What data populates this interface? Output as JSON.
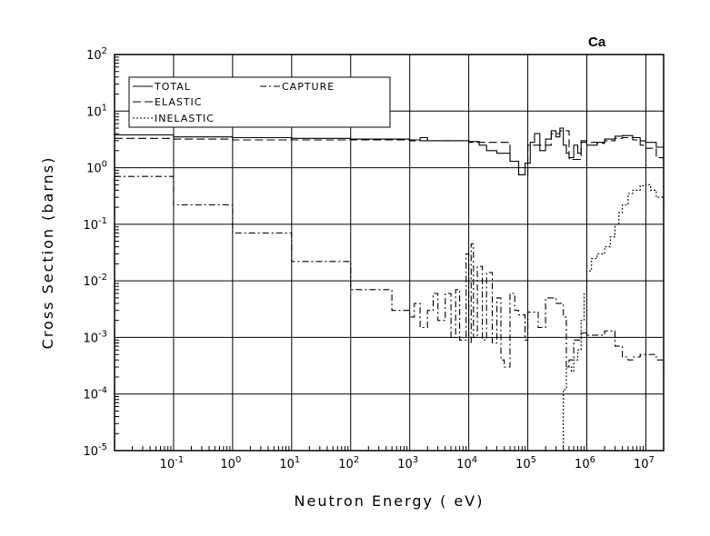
{
  "chart_data": {
    "type": "line",
    "title": "Ca",
    "xlabel": "Neutron Energy ( eV)",
    "ylabel": "Cross Section (barns)",
    "x_scale": "log",
    "y_scale": "log",
    "xlim": [
      0.01,
      20000000
    ],
    "ylim": [
      1e-05,
      100
    ],
    "grid": true,
    "legend_position": "top-left",
    "x_ticks": [
      {
        "base": "10",
        "exp": "-1",
        "value": 0.1
      },
      {
        "base": "10",
        "exp": "0",
        "value": 1
      },
      {
        "base": "10",
        "exp": "1",
        "value": 10
      },
      {
        "base": "10",
        "exp": "2",
        "value": 100
      },
      {
        "base": "10",
        "exp": "3",
        "value": 1000
      },
      {
        "base": "10",
        "exp": "4",
        "value": 10000
      },
      {
        "base": "10",
        "exp": "5",
        "value": 100000
      },
      {
        "base": "10",
        "exp": "6",
        "value": 1000000
      },
      {
        "base": "10",
        "exp": "7",
        "value": 10000000
      }
    ],
    "y_ticks": [
      {
        "base": "10",
        "exp": "2",
        "value": 100
      },
      {
        "base": "10",
        "exp": "1",
        "value": 10
      },
      {
        "base": "10",
        "exp": "0",
        "value": 1
      },
      {
        "base": "10",
        "exp": "-1",
        "value": 0.1
      },
      {
        "base": "10",
        "exp": "-2",
        "value": 0.01
      },
      {
        "base": "10",
        "exp": "-3",
        "value": 0.001
      },
      {
        "base": "10",
        "exp": "-4",
        "value": 0.0001
      },
      {
        "base": "10",
        "exp": "-5",
        "value": 1e-05
      }
    ],
    "series": [
      {
        "name": "TOTAL",
        "dash": "solid",
        "color": "#000000",
        "points": [
          [
            0.01,
            3.8
          ],
          [
            0.1,
            3.5
          ],
          [
            1,
            3.4
          ],
          [
            10,
            3.3
          ],
          [
            100,
            3.2
          ],
          [
            1000,
            3.1
          ],
          [
            1500,
            3.4
          ],
          [
            2000,
            3.0
          ],
          [
            5000,
            3.0
          ],
          [
            10000,
            2.9
          ],
          [
            15000,
            2.5
          ],
          [
            20000,
            2.0
          ],
          [
            30000,
            1.8
          ],
          [
            50000,
            1.3
          ],
          [
            70000,
            0.75
          ],
          [
            90000,
            1.2
          ],
          [
            110000,
            2.8
          ],
          [
            130000,
            4.0
          ],
          [
            160000,
            2.0
          ],
          [
            200000,
            3.2
          ],
          [
            250000,
            4.5
          ],
          [
            300000,
            3.5
          ],
          [
            350000,
            5.0
          ],
          [
            400000,
            2.5
          ],
          [
            450000,
            1.8
          ],
          [
            500000,
            1.5
          ],
          [
            600000,
            2.5
          ],
          [
            700000,
            1.8
          ],
          [
            800000,
            3.0
          ],
          [
            1000000,
            2.5
          ],
          [
            1500000,
            2.8
          ],
          [
            2000000,
            3.2
          ],
          [
            3000000,
            3.6
          ],
          [
            4000000,
            3.7
          ],
          [
            6000000,
            3.4
          ],
          [
            8000000,
            3.0
          ],
          [
            10000000,
            2.8
          ],
          [
            15000000,
            2.3
          ],
          [
            20000000,
            2.2
          ]
        ]
      },
      {
        "name": "ELASTIC",
        "dash": "long-dash",
        "color": "#000000",
        "points": [
          [
            0.01,
            3.3
          ],
          [
            0.1,
            3.2
          ],
          [
            1,
            3.1
          ],
          [
            5,
            3.1
          ],
          [
            100,
            3.1
          ],
          [
            1000,
            3.0
          ],
          [
            10000,
            2.8
          ],
          [
            50000,
            1.3
          ],
          [
            70000,
            0.75
          ],
          [
            100000,
            2.5
          ],
          [
            250000,
            4.0
          ],
          [
            350000,
            4.5
          ],
          [
            500000,
            1.4
          ],
          [
            800000,
            2.8
          ],
          [
            1500000,
            2.7
          ],
          [
            2000000,
            3.0
          ],
          [
            3000000,
            3.3
          ],
          [
            4000000,
            3.4
          ],
          [
            6000000,
            3.1
          ],
          [
            8000000,
            2.5
          ],
          [
            10000000,
            2.2
          ],
          [
            15000000,
            1.5
          ],
          [
            20000000,
            1.3
          ]
        ]
      },
      {
        "name": "CAPTURE",
        "dash": "dash-dot",
        "color": "#000000",
        "points": [
          [
            0.01,
            0.7
          ],
          [
            0.1,
            0.22
          ],
          [
            1,
            0.07
          ],
          [
            10,
            0.022
          ],
          [
            100,
            0.007
          ],
          [
            500,
            0.003
          ],
          [
            1000,
            0.0023
          ],
          [
            1200,
            0.004
          ],
          [
            1500,
            0.0015
          ],
          [
            2000,
            0.003
          ],
          [
            2500,
            0.006
          ],
          [
            3000,
            0.002
          ],
          [
            4000,
            0.006
          ],
          [
            5000,
            0.001
          ],
          [
            6000,
            0.007
          ],
          [
            7000,
            0.0009
          ],
          [
            9000,
            0.03
          ],
          [
            10000,
            0.0008
          ],
          [
            11000,
            0.045
          ],
          [
            12000,
            0.001
          ],
          [
            14000,
            0.018
          ],
          [
            17000,
            0.0009
          ],
          [
            20000,
            0.014
          ],
          [
            25000,
            0.0008
          ],
          [
            30000,
            0.005
          ],
          [
            35000,
            0.0004
          ],
          [
            40000,
            0.0003
          ],
          [
            50000,
            0.006
          ],
          [
            60000,
            0.003
          ],
          [
            70000,
            0.0025
          ],
          [
            90000,
            0.0009
          ],
          [
            100000,
            0.0028
          ],
          [
            150000,
            0.0015
          ],
          [
            200000,
            0.005
          ],
          [
            300000,
            0.004
          ],
          [
            400000,
            0.0023
          ],
          [
            450000,
            0.0003
          ],
          [
            500000,
            0.0004
          ],
          [
            600000,
            0.0009
          ],
          [
            800000,
            0.0012
          ],
          [
            1000000,
            0.0011
          ],
          [
            2000000,
            0.0013
          ],
          [
            3000000,
            0.0007
          ],
          [
            4000000,
            0.00045
          ],
          [
            5000000,
            0.0004
          ],
          [
            6000000,
            0.00045
          ],
          [
            8000000,
            0.0005
          ],
          [
            10000000,
            0.0005
          ],
          [
            15000000,
            0.0004
          ],
          [
            20000000,
            0.00022
          ]
        ]
      },
      {
        "name": "INELASTIC",
        "dash": "dotted",
        "color": "#000000",
        "points": [
          [
            400000,
            1e-05
          ],
          [
            400000,
            0.00012
          ],
          [
            450000,
            0.0003
          ],
          [
            550000,
            0.00025
          ],
          [
            600000,
            0.0004
          ],
          [
            700000,
            0.0006
          ],
          [
            800000,
            0.002
          ],
          [
            900000,
            0.006
          ],
          [
            1000000,
            0.015
          ],
          [
            1200000,
            0.025
          ],
          [
            1500000,
            0.03
          ],
          [
            2000000,
            0.04
          ],
          [
            2500000,
            0.06
          ],
          [
            3000000,
            0.1
          ],
          [
            3500000,
            0.16
          ],
          [
            4000000,
            0.22
          ],
          [
            5000000,
            0.35
          ],
          [
            6000000,
            0.4
          ],
          [
            8000000,
            0.48
          ],
          [
            10000000,
            0.5
          ],
          [
            12000000,
            0.4
          ],
          [
            15000000,
            0.3
          ],
          [
            20000000,
            0.2
          ]
        ]
      }
    ]
  }
}
